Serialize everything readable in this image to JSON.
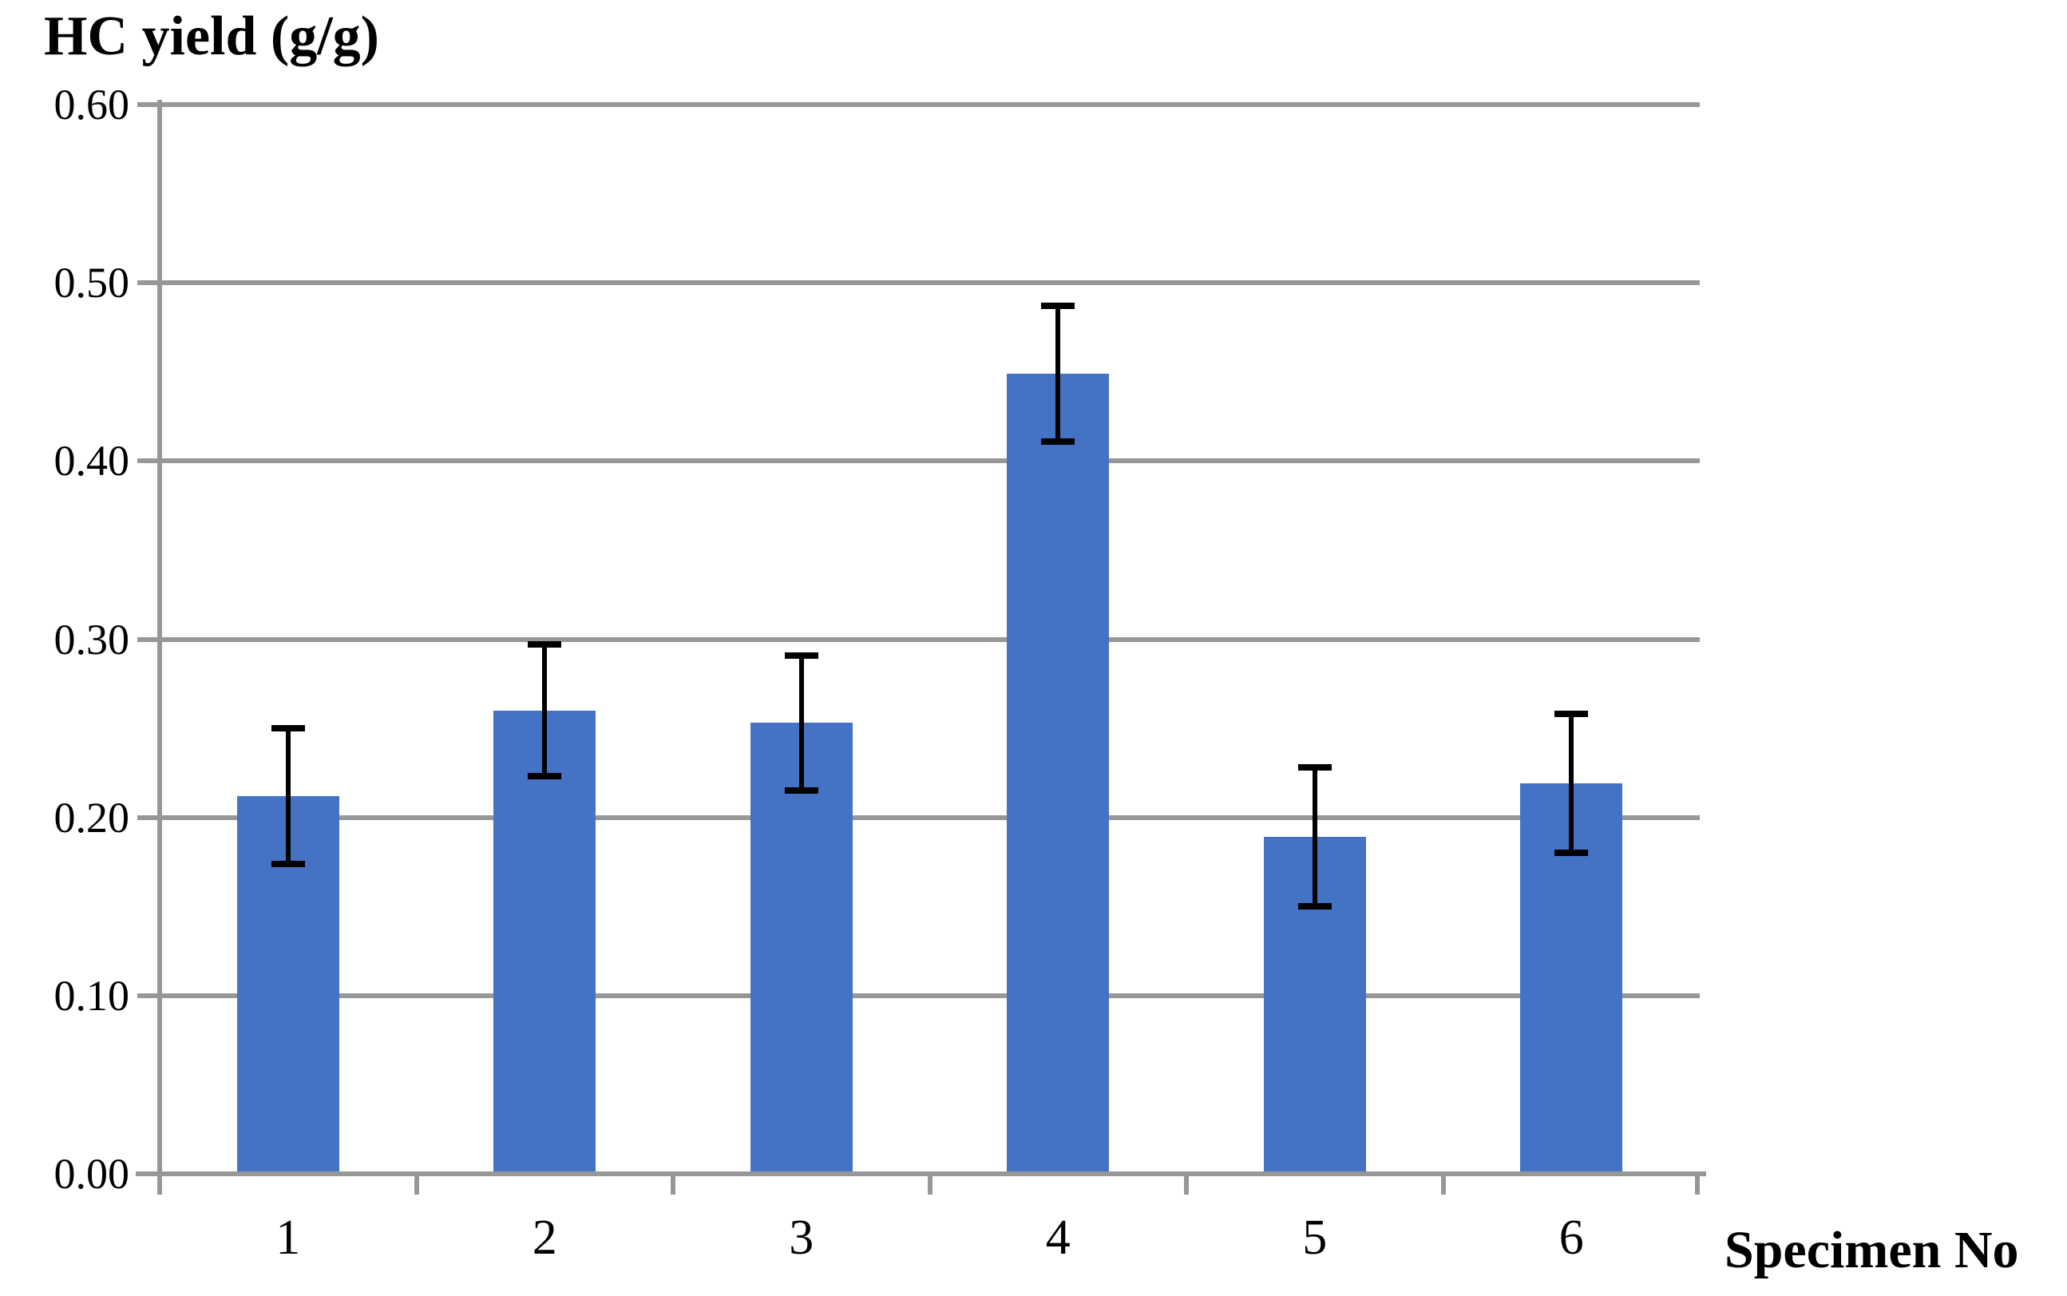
{
  "chart_data": {
    "type": "bar",
    "title": "HC yield (g/g)",
    "xlabel": "Specimen No",
    "ylabel": "HC yield (g/g)",
    "categories": [
      "1",
      "2",
      "3",
      "4",
      "5",
      "6"
    ],
    "values": [
      0.212,
      0.26,
      0.253,
      0.449,
      0.189,
      0.219
    ],
    "error_bars": {
      "plus": [
        0.038,
        0.037,
        0.038,
        0.038,
        0.039,
        0.039
      ],
      "minus": [
        0.038,
        0.037,
        0.038,
        0.038,
        0.039,
        0.039
      ]
    },
    "ylim": [
      0.0,
      0.6
    ],
    "ytick_step": 0.1,
    "y_tick_labels": [
      "0.00",
      "0.10",
      "0.20",
      "0.30",
      "0.40",
      "0.50",
      "0.60"
    ],
    "grid": "horizontal-major",
    "legend": "none",
    "bar_color": "#4472C4",
    "axis_color": "#979797",
    "gridline_color": "#979797",
    "error_bar_color": "#000000"
  }
}
